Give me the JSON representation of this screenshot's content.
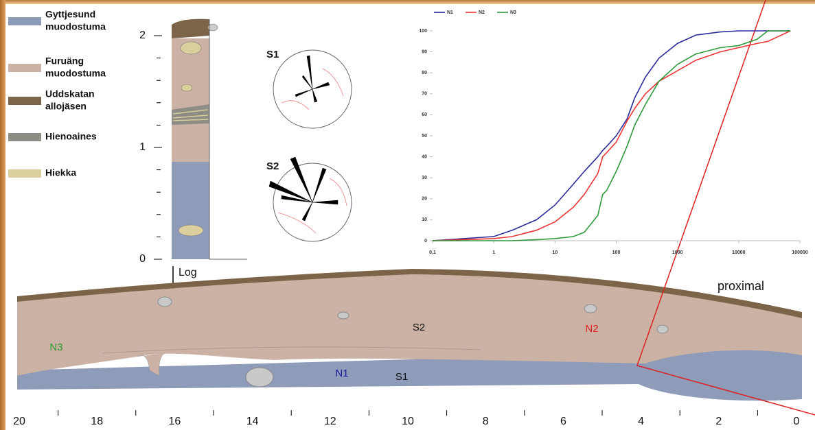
{
  "legend": [
    {
      "lines": [
        "Gyttjesund",
        "muodostuma"
      ],
      "color": "#8e9bb9"
    },
    {
      "lines": [
        "Furuäng",
        "muodostuma"
      ],
      "color": "#cbb2a5"
    },
    {
      "lines": [
        "Uddskatan",
        "allojäsen"
      ],
      "color": "#7b6447"
    },
    {
      "lines": [
        "Hienoaines"
      ],
      "color": "#8d8d86"
    },
    {
      "lines": [
        "Hiekka"
      ],
      "color": "#dbcf9d"
    }
  ],
  "log": {
    "label": "Log",
    "yticks": [
      0,
      1,
      2
    ]
  },
  "rose": [
    "S1",
    "S2"
  ],
  "section": {
    "labels": [
      {
        "text": "N3",
        "color": "#2a9a2a"
      },
      {
        "text": "S2",
        "color": "#111111"
      },
      {
        "text": "N2",
        "color": "#e02020"
      },
      {
        "text": "N1",
        "color": "#1a1a9a"
      },
      {
        "text": "S1",
        "color": "#111111"
      }
    ],
    "side_label": "proximal",
    "xlim": [
      20,
      0
    ],
    "xticks": [
      20,
      18,
      16,
      14,
      12,
      10,
      8,
      6,
      4,
      2,
      0
    ]
  },
  "chart_data": {
    "type": "line",
    "xscale": "log",
    "xlim": [
      0.1,
      100000
    ],
    "xticks": [
      {
        "value": 0.1,
        "label": "0,1"
      },
      1,
      10,
      100,
      1000,
      10000,
      100000
    ],
    "ylim": [
      0,
      100
    ],
    "yticks": [
      0,
      10,
      20,
      30,
      40,
      50,
      60,
      70,
      80,
      90,
      100
    ],
    "x": [
      0.1,
      1,
      2,
      5,
      10,
      20,
      30,
      50,
      60,
      70,
      100,
      150,
      200,
      300,
      500,
      1000,
      2000,
      5000,
      10000,
      20000,
      30000,
      70000
    ],
    "series": [
      {
        "name": "N1",
        "color": "#2a2a9a",
        "values": [
          0,
          2,
          5,
          10,
          17,
          27,
          33,
          40,
          43,
          45,
          50,
          58,
          68,
          78,
          87,
          94,
          98,
          99.5,
          100,
          100,
          100,
          100
        ]
      },
      {
        "name": "N2",
        "color": "#ee3333",
        "values": [
          0,
          1,
          2,
          5,
          9,
          16,
          22,
          32,
          40,
          42,
          47,
          57,
          63,
          70,
          76,
          81,
          86,
          90,
          92,
          94,
          95,
          100
        ]
      },
      {
        "name": "N3",
        "color": "#2e9a3a",
        "values": [
          0,
          0,
          0,
          0.5,
          1,
          2,
          4,
          12,
          22,
          24,
          33,
          45,
          55,
          65,
          76,
          84,
          89,
          92,
          93,
          96,
          100,
          100
        ]
      }
    ]
  }
}
